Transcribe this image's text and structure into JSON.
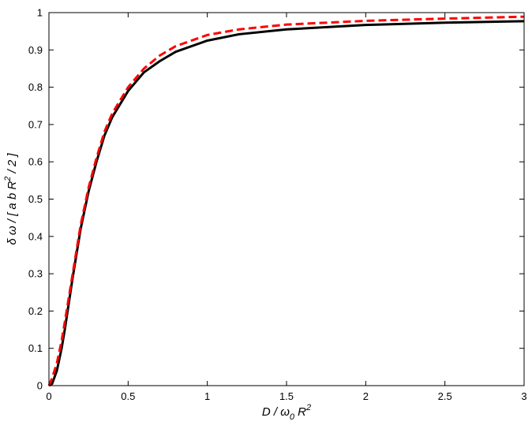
{
  "chart_data": {
    "type": "line",
    "title": "",
    "xlabel": "D / ω_0 R^2",
    "ylabel": "δ ω / [ a b R^2 / 2 ]",
    "xlabel_parts": {
      "pre": "D / ω",
      "sub": "0",
      "mid": " R",
      "sup": "2"
    },
    "ylabel_parts": {
      "pre": "δ ω / [ a b R",
      "sup": "2",
      "post": " / 2 ]"
    },
    "xlim": [
      0,
      3
    ],
    "ylim": [
      0,
      1
    ],
    "grid": false,
    "legend": "none",
    "x_ticks": [
      "0",
      "0.5",
      "1",
      "1.5",
      "2",
      "2.5",
      "3"
    ],
    "y_ticks": [
      "0",
      "0.1",
      "0.2",
      "0.3",
      "0.4",
      "0.5",
      "0.6",
      "0.7",
      "0.8",
      "0.9",
      "1"
    ],
    "series": [
      {
        "color": "#000000",
        "style": "solid",
        "x": [
          0,
          0.02,
          0.05,
          0.08,
          0.1,
          0.15,
          0.2,
          0.25,
          0.3,
          0.35,
          0.4,
          0.5,
          0.6,
          0.7,
          0.8,
          1.0,
          1.2,
          1.5,
          2.0,
          2.5,
          3.0
        ],
        "y": [
          0,
          0.005,
          0.04,
          0.1,
          0.15,
          0.29,
          0.42,
          0.52,
          0.6,
          0.67,
          0.72,
          0.79,
          0.84,
          0.87,
          0.895,
          0.925,
          0.942,
          0.955,
          0.967,
          0.973,
          0.977
        ]
      },
      {
        "color": "#ff0000",
        "style": "dashed",
        "x": [
          0,
          0.02,
          0.05,
          0.08,
          0.1,
          0.15,
          0.2,
          0.25,
          0.3,
          0.35,
          0.4,
          0.5,
          0.6,
          0.7,
          0.8,
          1.0,
          1.2,
          1.5,
          2.0,
          2.5,
          3.0
        ],
        "y": [
          0,
          0.02,
          0.06,
          0.12,
          0.17,
          0.3,
          0.43,
          0.53,
          0.61,
          0.68,
          0.73,
          0.8,
          0.85,
          0.885,
          0.91,
          0.94,
          0.955,
          0.968,
          0.978,
          0.984,
          0.989
        ]
      }
    ]
  }
}
